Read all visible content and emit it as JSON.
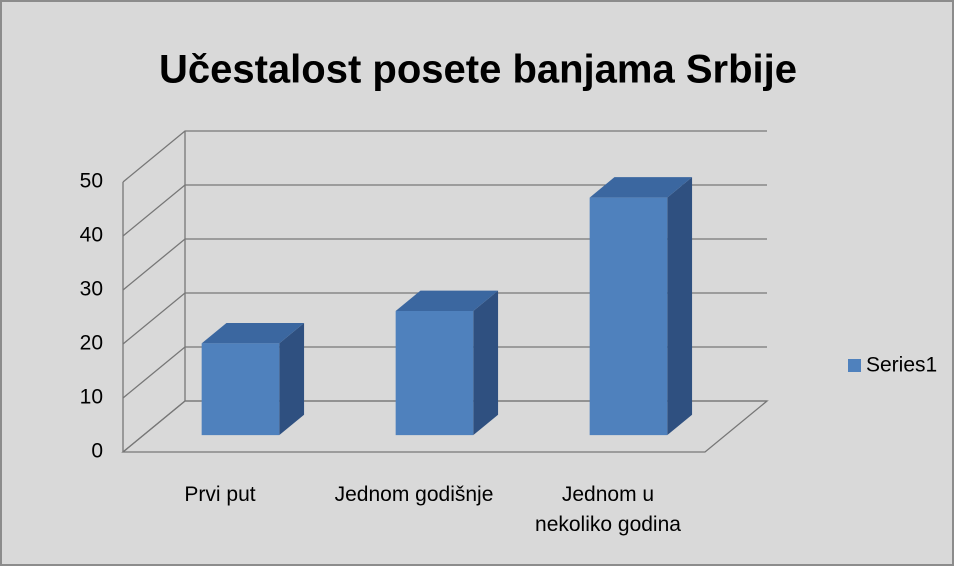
{
  "chart_data": {
    "type": "bar3d",
    "title": "Učestalost posete banjama Srbije",
    "categories": [
      "Prvi put",
      "Jednom godišnje",
      "Jednom u nekoliko godina"
    ],
    "series": [
      {
        "name": "Series1",
        "color": "#4f81bd",
        "values": [
          17,
          23,
          44
        ]
      }
    ],
    "ylim": [
      0,
      50
    ],
    "yticks": [
      0,
      10,
      20,
      30,
      40,
      50
    ],
    "grid": true,
    "legend": "right"
  }
}
